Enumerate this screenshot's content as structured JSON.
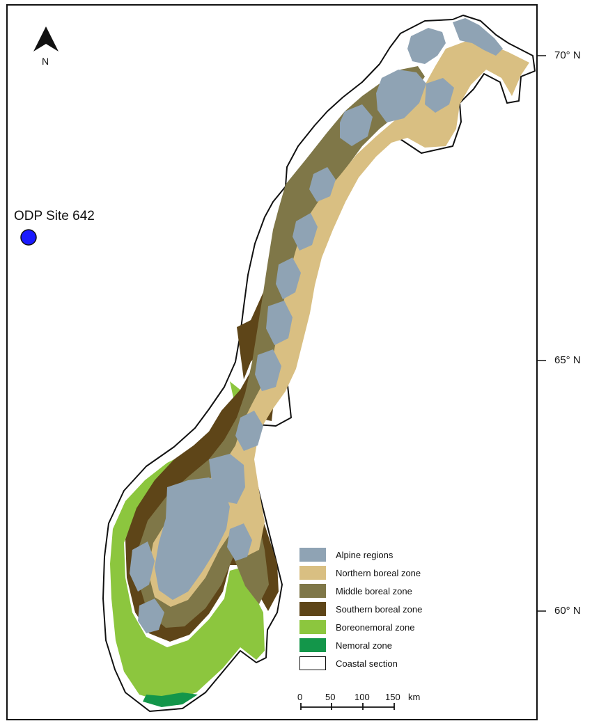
{
  "north_arrow": {
    "label": "N",
    "icon": "north-arrow-icon"
  },
  "site": {
    "label": "ODP Site 642",
    "color": "#1a1aff"
  },
  "latitudes": [
    "70° N",
    "65° N",
    "60° N"
  ],
  "legend": [
    {
      "label": "Alpine regions",
      "color": "#8fa3b4"
    },
    {
      "label": "Northern boreal zone",
      "color": "#d9bf82"
    },
    {
      "label": "Middle boreal zone",
      "color": "#7f7748"
    },
    {
      "label": "Southern boreal zone",
      "color": "#5e4518"
    },
    {
      "label": "Boreonemoral zone",
      "color": "#8cc63e"
    },
    {
      "label": "Nemoral zone",
      "color": "#13964a"
    },
    {
      "label": "Coastal section",
      "color": "#ffffff"
    }
  ],
  "scale_bar": {
    "ticks": [
      "0",
      "50",
      "100",
      "150"
    ],
    "unit": "km"
  }
}
